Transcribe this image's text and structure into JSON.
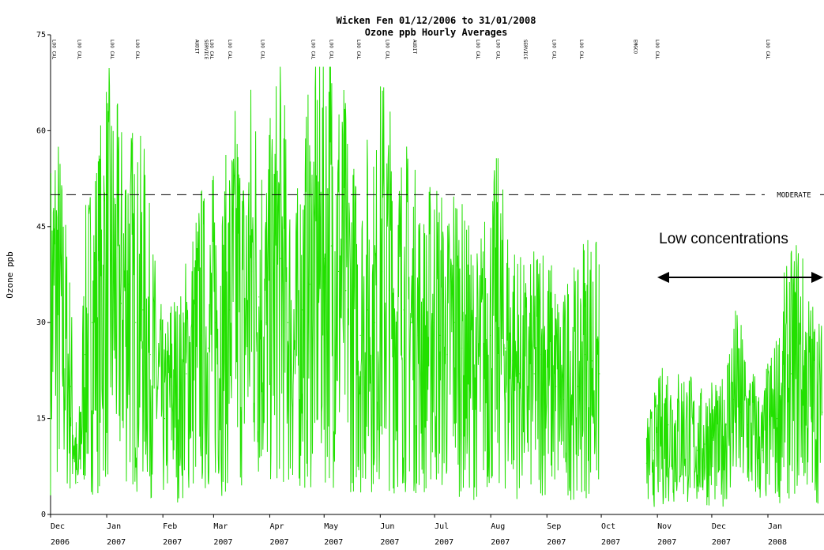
{
  "chart_data": {
    "type": "line",
    "title": "Wicken Fen 01/12/2006 to 31/01/2008",
    "subtitle": "Ozone ppb Hourly Averages",
    "ylabel": "Ozone ppb",
    "xlabel": "",
    "ylim": [
      0,
      75
    ],
    "y_ticks": [
      "0",
      "15",
      "30",
      "45",
      "60",
      "75"
    ],
    "x_ticks": [
      {
        "month": "Dec",
        "year": "2006"
      },
      {
        "month": "Jan",
        "year": "2007"
      },
      {
        "month": "Feb",
        "year": "2007"
      },
      {
        "month": "Mar",
        "year": "2007"
      },
      {
        "month": "Apr",
        "year": "2007"
      },
      {
        "month": "May",
        "year": "2007"
      },
      {
        "month": "Jun",
        "year": "2007"
      },
      {
        "month": "Jul",
        "year": "2007"
      },
      {
        "month": "Aug",
        "year": "2007"
      },
      {
        "month": "Sep",
        "year": "2007"
      },
      {
        "month": "Oct",
        "year": "2007"
      },
      {
        "month": "Nov",
        "year": "2007"
      },
      {
        "month": "Dec",
        "year": "2007"
      },
      {
        "month": "Jan",
        "year": "2008"
      }
    ],
    "threshold": {
      "label": "MODERATE",
      "value": 50
    },
    "annotation": {
      "text": "Low concentrations"
    },
    "series_color": "#22e000",
    "grid": false,
    "series": [
      {
        "x": [
          "2006-12-01",
          "2006-12-04",
          "2006-12-08",
          "2006-12-12",
          "2006-12-16",
          "2006-12-20",
          "2006-12-24",
          "2006-12-28",
          "2007-01-01",
          "2007-01-05",
          "2007-01-09",
          "2007-01-13",
          "2007-01-17",
          "2007-01-21",
          "2007-01-25",
          "2007-01-29",
          "2007-02-02",
          "2007-02-06",
          "2007-02-10",
          "2007-02-14",
          "2007-02-18",
          "2007-02-22",
          "2007-02-26",
          "2007-03-02",
          "2007-03-06",
          "2007-03-10",
          "2007-03-14",
          "2007-03-18",
          "2007-03-22",
          "2007-03-26",
          "2007-03-30",
          "2007-04-03",
          "2007-04-07",
          "2007-04-11",
          "2007-04-15",
          "2007-04-19",
          "2007-04-23",
          "2007-04-27",
          "2007-05-01",
          "2007-05-05",
          "2007-05-09",
          "2007-05-13",
          "2007-05-17",
          "2007-05-21",
          "2007-05-25",
          "2007-05-29",
          "2007-06-02",
          "2007-06-06",
          "2007-06-10",
          "2007-06-14",
          "2007-06-18",
          "2007-06-22",
          "2007-06-26",
          "2007-06-30",
          "2007-07-04",
          "2007-07-08",
          "2007-07-12",
          "2007-07-16",
          "2007-07-20",
          "2007-07-24",
          "2007-07-28",
          "2007-08-01",
          "2007-08-05",
          "2007-08-09",
          "2007-08-13",
          "2007-08-17",
          "2007-08-21",
          "2007-08-25",
          "2007-08-29",
          "2007-09-02",
          "2007-09-06",
          "2007-09-10",
          "2007-09-14",
          "2007-09-18",
          "2007-09-22",
          "2007-09-26",
          "2007-09-30",
          "2007-10-26",
          "2007-10-30",
          "2007-11-03",
          "2007-11-07",
          "2007-11-11",
          "2007-11-15",
          "2007-11-19",
          "2007-11-23",
          "2007-11-27",
          "2007-12-01",
          "2007-12-05",
          "2007-12-09",
          "2007-12-13",
          "2007-12-17",
          "2007-12-21",
          "2007-12-25",
          "2007-12-29",
          "2008-01-02",
          "2008-01-06",
          "2008-01-10",
          "2008-01-14",
          "2008-01-18",
          "2008-01-22",
          "2008-01-26",
          "2008-01-31"
        ],
        "y": [
          30,
          35,
          28,
          20,
          5,
          25,
          30,
          32,
          38,
          35,
          33,
          36,
          30,
          32,
          25,
          20,
          15,
          20,
          18,
          22,
          25,
          28,
          26,
          30,
          28,
          32,
          35,
          30,
          38,
          34,
          30,
          35,
          40,
          30,
          25,
          32,
          36,
          38,
          40,
          42,
          38,
          35,
          30,
          28,
          32,
          30,
          38,
          35,
          30,
          32,
          30,
          28,
          25,
          30,
          28,
          25,
          30,
          26,
          24,
          22,
          25,
          28,
          30,
          26,
          24,
          22,
          20,
          22,
          25,
          22,
          20,
          18,
          22,
          20,
          25,
          24,
          22,
          8,
          10,
          12,
          14,
          12,
          13,
          12,
          10,
          11,
          12,
          10,
          14,
          18,
          16,
          14,
          12,
          10,
          14,
          15,
          20,
          22,
          24,
          20,
          18,
          16
        ]
      }
    ],
    "markers": [
      "LOO CAL",
      "LOO CAL",
      "LOO CAL",
      "LOO CAL",
      "AUDIT",
      "SERVICE",
      "LOO CAL",
      "LOO CAL",
      "LOO CAL",
      "LOO CAL",
      "LOO CAL",
      "LOO CAL",
      "LOO CAL",
      "AUDIT",
      "LOO CAL",
      "LOO CAL",
      "SERVICE",
      "LOO CAL",
      "LOO CAL",
      "EMGCO",
      "LOO CAL",
      "LOO CAL"
    ]
  }
}
